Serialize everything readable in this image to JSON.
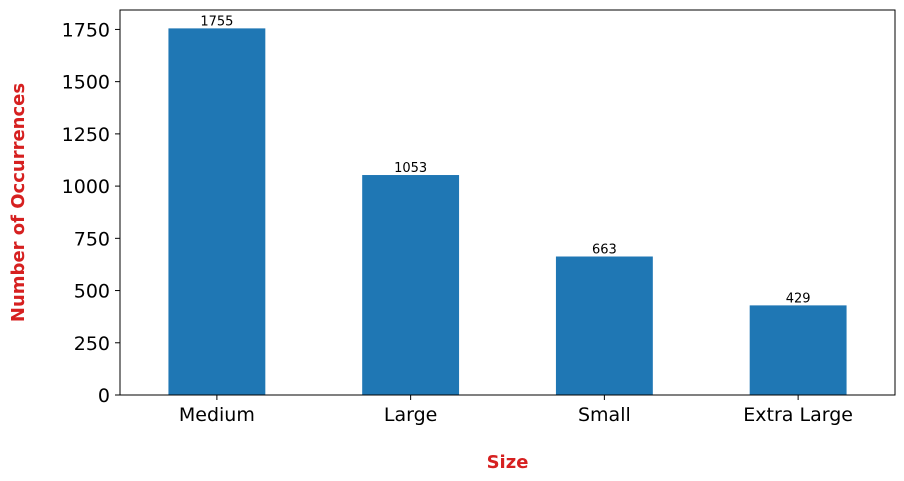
{
  "colors": {
    "bar": "#1f77b4",
    "axis_title": "#d62020",
    "axis": "#000000"
  },
  "chart_data": {
    "type": "bar",
    "categories": [
      "Medium",
      "Large",
      "Small",
      "Extra Large"
    ],
    "values": [
      1755,
      1053,
      663,
      429
    ],
    "data_labels": [
      "1755",
      "1053",
      "663",
      "429"
    ],
    "title": "",
    "xlabel": "Size",
    "ylabel": "Number of Occurrences",
    "ylim": [
      0,
      1843
    ],
    "yticks": [
      0,
      250,
      500,
      750,
      1000,
      1250,
      1500,
      1750
    ],
    "grid": false,
    "legend": "none"
  }
}
